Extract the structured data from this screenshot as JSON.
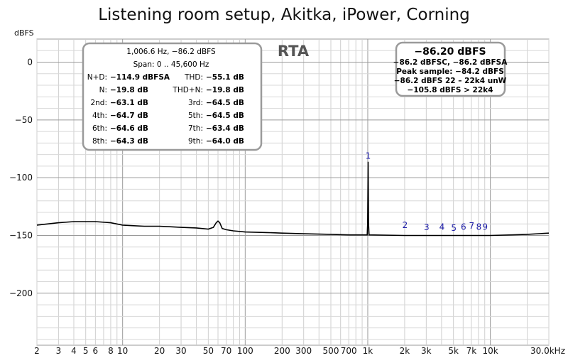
{
  "chart_data": {
    "type": "line",
    "title": "Listening room setup, Akitka, iPower, Corning",
    "ylabel": "dBFS",
    "xlabel": "",
    "x_scale": "log",
    "xlim": [
      2,
      30000
    ],
    "ylim": [
      -245,
      20
    ],
    "grid": true,
    "y_ticks": [
      0,
      -50,
      -100,
      -150,
      -200
    ],
    "y_tick_labels": [
      "0",
      "−50",
      "−100",
      "−150",
      "−200"
    ],
    "x_ticks": [
      2,
      3,
      4,
      5,
      6,
      8,
      10,
      20,
      30,
      50,
      70,
      100,
      200,
      300,
      500,
      700,
      1000,
      2000,
      3000,
      5000,
      7000,
      10000,
      30000
    ],
    "x_tick_labels": [
      "2",
      "3",
      "4",
      "5",
      "6",
      "8",
      "10",
      "20",
      "30",
      "50",
      "70",
      "100",
      "200",
      "300",
      "500",
      "700",
      "1k",
      "2k",
      "3k",
      "5k",
      "7k",
      "10k",
      "30.0kHz"
    ],
    "series": [
      {
        "points": [
          [
            2,
            -141
          ],
          [
            3,
            -139
          ],
          [
            4,
            -138
          ],
          [
            5,
            -138
          ],
          [
            6,
            -138
          ],
          [
            8,
            -139
          ],
          [
            10,
            -141
          ],
          [
            12,
            -141.5
          ],
          [
            15,
            -142
          ],
          [
            20,
            -142
          ],
          [
            25,
            -142.5
          ],
          [
            30,
            -143
          ],
          [
            40,
            -143.5
          ],
          [
            50,
            -144.5
          ],
          [
            55,
            -143
          ],
          [
            58,
            -139
          ],
          [
            60,
            -137.5
          ],
          [
            62,
            -139
          ],
          [
            65,
            -144
          ],
          [
            70,
            -145
          ],
          [
            80,
            -146
          ],
          [
            100,
            -147
          ],
          [
            150,
            -147.5
          ],
          [
            200,
            -148
          ],
          [
            300,
            -148.5
          ],
          [
            500,
            -149
          ],
          [
            700,
            -149.5
          ],
          [
            990,
            -149.5
          ],
          [
            998,
            -140
          ],
          [
            1006.6,
            -86.2
          ],
          [
            1015,
            -140
          ],
          [
            1025,
            -149.5
          ],
          [
            2000,
            -150
          ],
          [
            3000,
            -150
          ],
          [
            5000,
            -150
          ],
          [
            7000,
            -150
          ],
          [
            10000,
            -150
          ],
          [
            15000,
            -149.5
          ],
          [
            20000,
            -149
          ],
          [
            30000,
            -148
          ]
        ]
      }
    ],
    "harmonic_markers": [
      {
        "label": "1",
        "x": 1006.6,
        "y": -86.2
      },
      {
        "label": "2",
        "x": 2013,
        "y": -146
      },
      {
        "label": "3",
        "x": 3020,
        "y": -148
      },
      {
        "label": "4",
        "x": 4026,
        "y": -147.5
      },
      {
        "label": "5",
        "x": 5033,
        "y": -148.5
      },
      {
        "label": "6",
        "x": 6040,
        "y": -147.5
      },
      {
        "label": "7",
        "x": 7046,
        "y": -146.5
      },
      {
        "label": "8",
        "x": 8053,
        "y": -147.5
      },
      {
        "label": "9",
        "x": 9060,
        "y": -147.5
      }
    ]
  },
  "thd_box": {
    "header": "1,006.6 Hz, −86.2 dBFS",
    "span": "Span: 0 .. 45,600 Hz",
    "rows": [
      [
        "N+D:",
        "−114.9 dBFSA",
        "THD:",
        "−55.1 dB"
      ],
      [
        "N:",
        "−19.8 dB",
        "THD+N:",
        "−19.8 dB"
      ],
      [
        "2nd:",
        "−63.1 dB",
        "3rd:",
        "−64.5 dB"
      ],
      [
        "4th:",
        "−64.7 dB",
        "5th:",
        "−64.5 dB"
      ],
      [
        "6th:",
        "−64.6 dB",
        "7th:",
        "−63.4 dB"
      ],
      [
        "8th:",
        "−64.3 dB",
        "9th:",
        "−64.0 dB"
      ]
    ]
  },
  "rta_label": "RTA",
  "level_box": {
    "main": "−86.20 dBFS",
    "lines": [
      "−86.2 dBFSC, −86.2 dBFSA",
      "Peak sample: −84.2 dBFS",
      "−86.2 dBFS 22 – 22k4 unW",
      "−105.8 dBFS > 22k4"
    ]
  }
}
